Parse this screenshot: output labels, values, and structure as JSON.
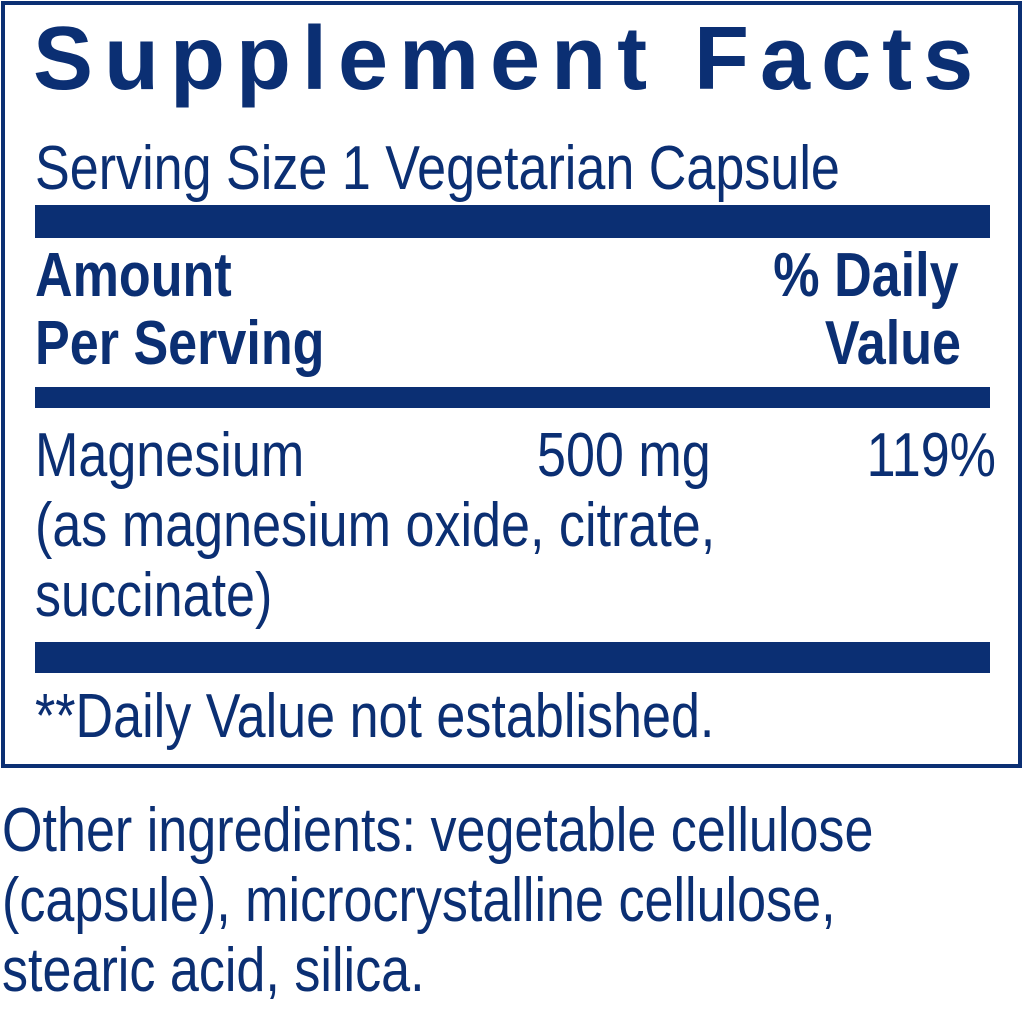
{
  "label": {
    "title": "Supplement Facts",
    "serving_size": "Serving Size 1 Vegetarian Capsule",
    "header": {
      "amount_line1": "Amount",
      "amount_line2": "Per Serving",
      "dv_line1": "% Daily",
      "dv_line2": "Value"
    },
    "nutrients": [
      {
        "name": "Magnesium",
        "amount": "500 mg",
        "daily_value": "119%",
        "source_line1": "(as magnesium oxide, citrate,",
        "source_line2": "succinate)"
      }
    ],
    "footnote": "**Daily Value not established."
  },
  "other_ingredients": {
    "line1": "Other ingredients: vegetable cellulose",
    "line2": "(capsule), microcrystalline cellulose,",
    "line3": "stearic acid, silica."
  },
  "colors": {
    "ink": "#0b2f73",
    "background": "#ffffff"
  }
}
